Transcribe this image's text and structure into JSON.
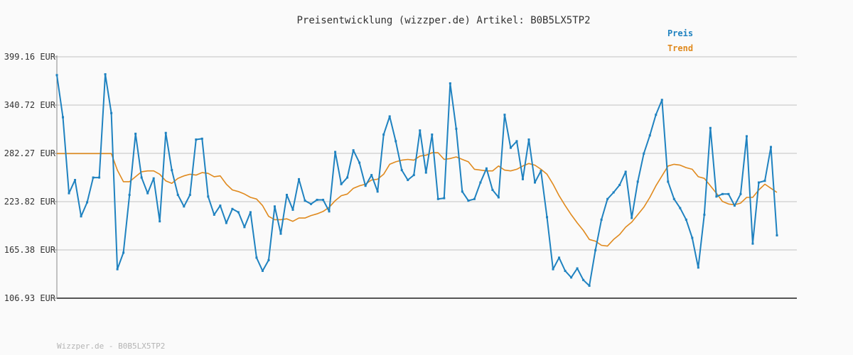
{
  "chart_data": {
    "type": "line",
    "title": "Preisentwicklung (wizzper.de) Artikel: B0B5LX5TP2",
    "footer": "Wizzper.de - B0B5LX5TP2",
    "ylim": [
      106.93,
      399.16
    ],
    "yticks": [
      "106.93 EUR",
      "165.38 EUR",
      "223.82 EUR",
      "282.27 EUR",
      "340.72 EUR",
      "399.16 EUR"
    ],
    "ytick_values": [
      106.93,
      165.38,
      223.82,
      282.27,
      340.72,
      399.16
    ],
    "grid": true,
    "legend_position": "top-right",
    "series": [
      {
        "name": "Preis",
        "color": "#1f82c0",
        "values": [
          377,
          326,
          234,
          250,
          206,
          223,
          253,
          253,
          378,
          331,
          142,
          162,
          232,
          306,
          253,
          234,
          252,
          200,
          307,
          262,
          232,
          218,
          232,
          299,
          300,
          230,
          208,
          219,
          198,
          215,
          211,
          193,
          211,
          156,
          140,
          153,
          218,
          185,
          232,
          214,
          251,
          225,
          221,
          226,
          226,
          212,
          284,
          245,
          253,
          286,
          271,
          243,
          256,
          236,
          305,
          327,
          297,
          262,
          250,
          256,
          310,
          259,
          305,
          227,
          228,
          367,
          312,
          236,
          225,
          227,
          247,
          264,
          238,
          229,
          329,
          289,
          297,
          251,
          299,
          247,
          261,
          205,
          142,
          156,
          140,
          132,
          143,
          129,
          122,
          165,
          202,
          227,
          235,
          244,
          260,
          204,
          248,
          282,
          304,
          329,
          347,
          248,
          227,
          216,
          202,
          180,
          144,
          208,
          313,
          230,
          233,
          233,
          219,
          233,
          303,
          173,
          247,
          249,
          290,
          183
        ],
        "point_markers": true
      },
      {
        "name": "Trend",
        "color": "#e08a1e",
        "values": [
          282,
          282,
          282,
          282,
          282,
          282,
          282,
          282,
          282,
          282,
          262,
          248,
          248,
          254,
          260,
          261,
          261,
          257,
          249,
          246,
          252,
          255,
          257,
          256,
          259,
          258,
          254,
          255,
          245,
          238,
          236,
          233,
          229,
          227,
          219,
          206,
          202,
          202,
          203,
          200,
          204,
          204,
          207,
          209,
          212,
          217,
          225,
          231,
          233,
          240,
          243,
          245,
          250,
          251,
          257,
          269,
          272,
          274,
          275,
          274,
          279,
          280,
          283,
          283,
          275,
          276,
          278,
          275,
          272,
          263,
          262,
          261,
          261,
          267,
          262,
          261,
          263,
          267,
          270,
          268,
          263,
          257,
          245,
          231,
          219,
          208,
          198,
          189,
          178,
          176,
          171,
          170,
          178,
          184,
          193,
          199,
          208,
          217,
          229,
          243,
          255,
          267,
          269,
          268,
          265,
          263,
          254,
          252,
          243,
          234,
          224,
          221,
          220,
          222,
          229,
          229,
          238,
          245,
          240,
          235
        ],
        "point_markers": false
      }
    ]
  }
}
